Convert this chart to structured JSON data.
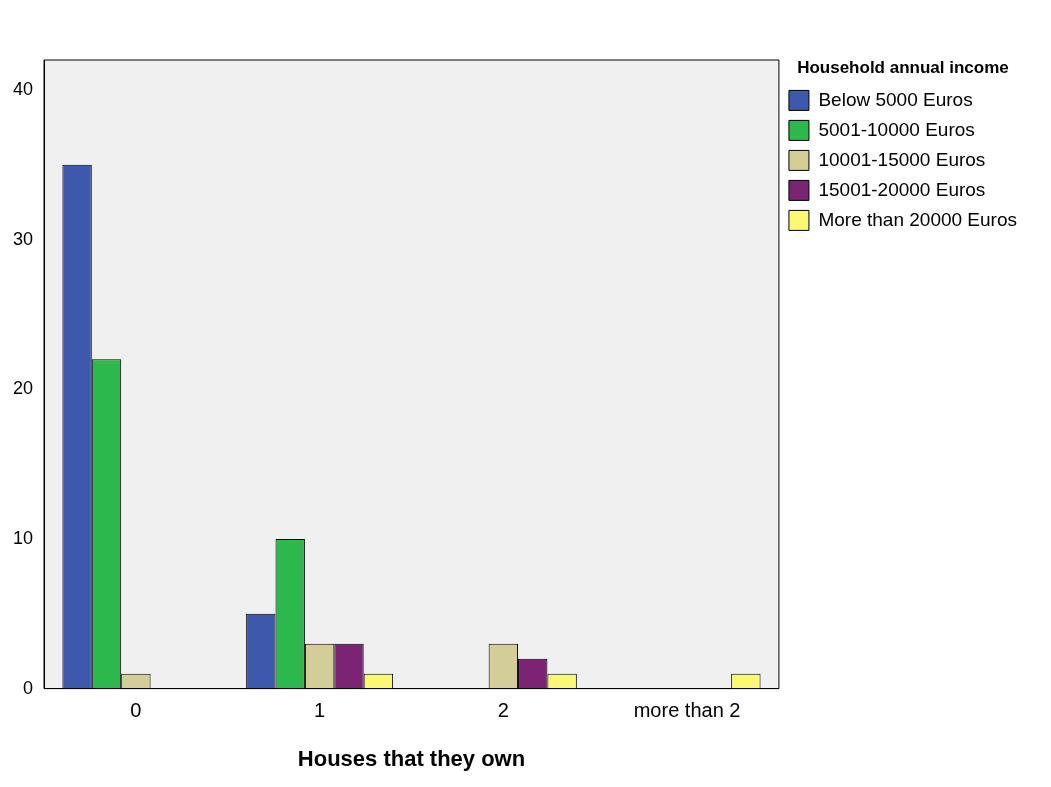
{
  "chart_data": {
    "type": "bar",
    "xlabel": "Houses that they own",
    "legend_title": "Household annual income",
    "categories": [
      "0",
      "1",
      "2",
      "more than 2"
    ],
    "series": [
      {
        "name": "Below 5000 Euros",
        "color": "#3e58ac",
        "values": [
          35,
          5,
          null,
          null
        ]
      },
      {
        "name": "5001-10000 Euros",
        "color": "#2db84d",
        "values": [
          22,
          10,
          null,
          null
        ]
      },
      {
        "name": "10001-15000 Euros",
        "color": "#d3ce97",
        "values": [
          1,
          3,
          3,
          null
        ]
      },
      {
        "name": "15001-20000 Euros",
        "color": "#7b2474",
        "values": [
          null,
          3,
          2,
          null
        ]
      },
      {
        "name": "More than 20000 Euros",
        "color": "#fbf873",
        "values": [
          null,
          1,
          1,
          1
        ]
      }
    ],
    "ylim": [
      0,
      42
    ],
    "yticks": [
      0,
      10,
      20,
      30,
      40
    ],
    "grid": false,
    "legend": "right"
  }
}
